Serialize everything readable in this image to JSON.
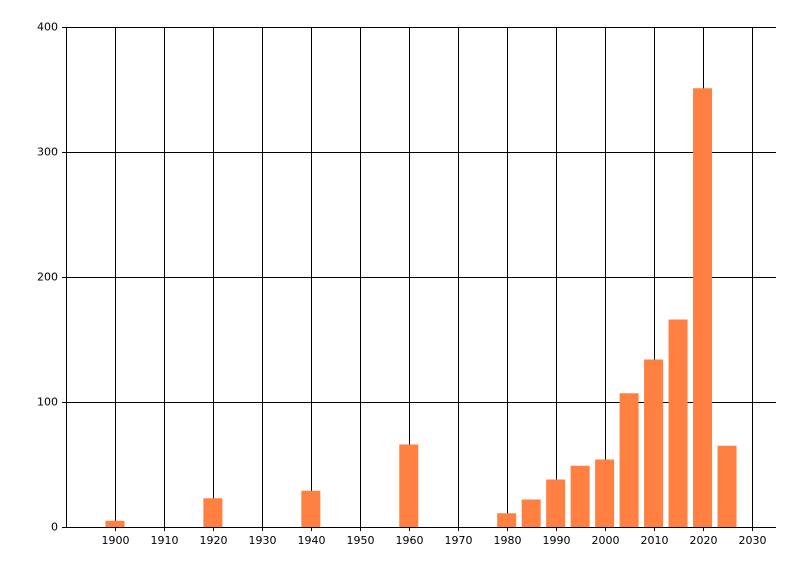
{
  "chart_data": {
    "type": "bar",
    "x": [
      1900,
      1920,
      1940,
      1960,
      1980,
      1985,
      1990,
      1995,
      2000,
      2005,
      2010,
      2015,
      2020,
      2025
    ],
    "values": [
      5,
      23,
      29,
      66,
      11,
      22,
      38,
      49,
      54,
      107,
      134,
      166,
      351,
      65
    ],
    "color": "#ff8040",
    "xlim": [
      1890,
      2035
    ],
    "xticks": [
      1900,
      1910,
      1920,
      1930,
      1940,
      1950,
      1960,
      1970,
      1980,
      1990,
      2000,
      2010,
      2020,
      2030
    ],
    "ylim": [
      0,
      400
    ],
    "yticks": [
      0,
      100,
      200,
      300,
      400
    ],
    "grid": true
  }
}
